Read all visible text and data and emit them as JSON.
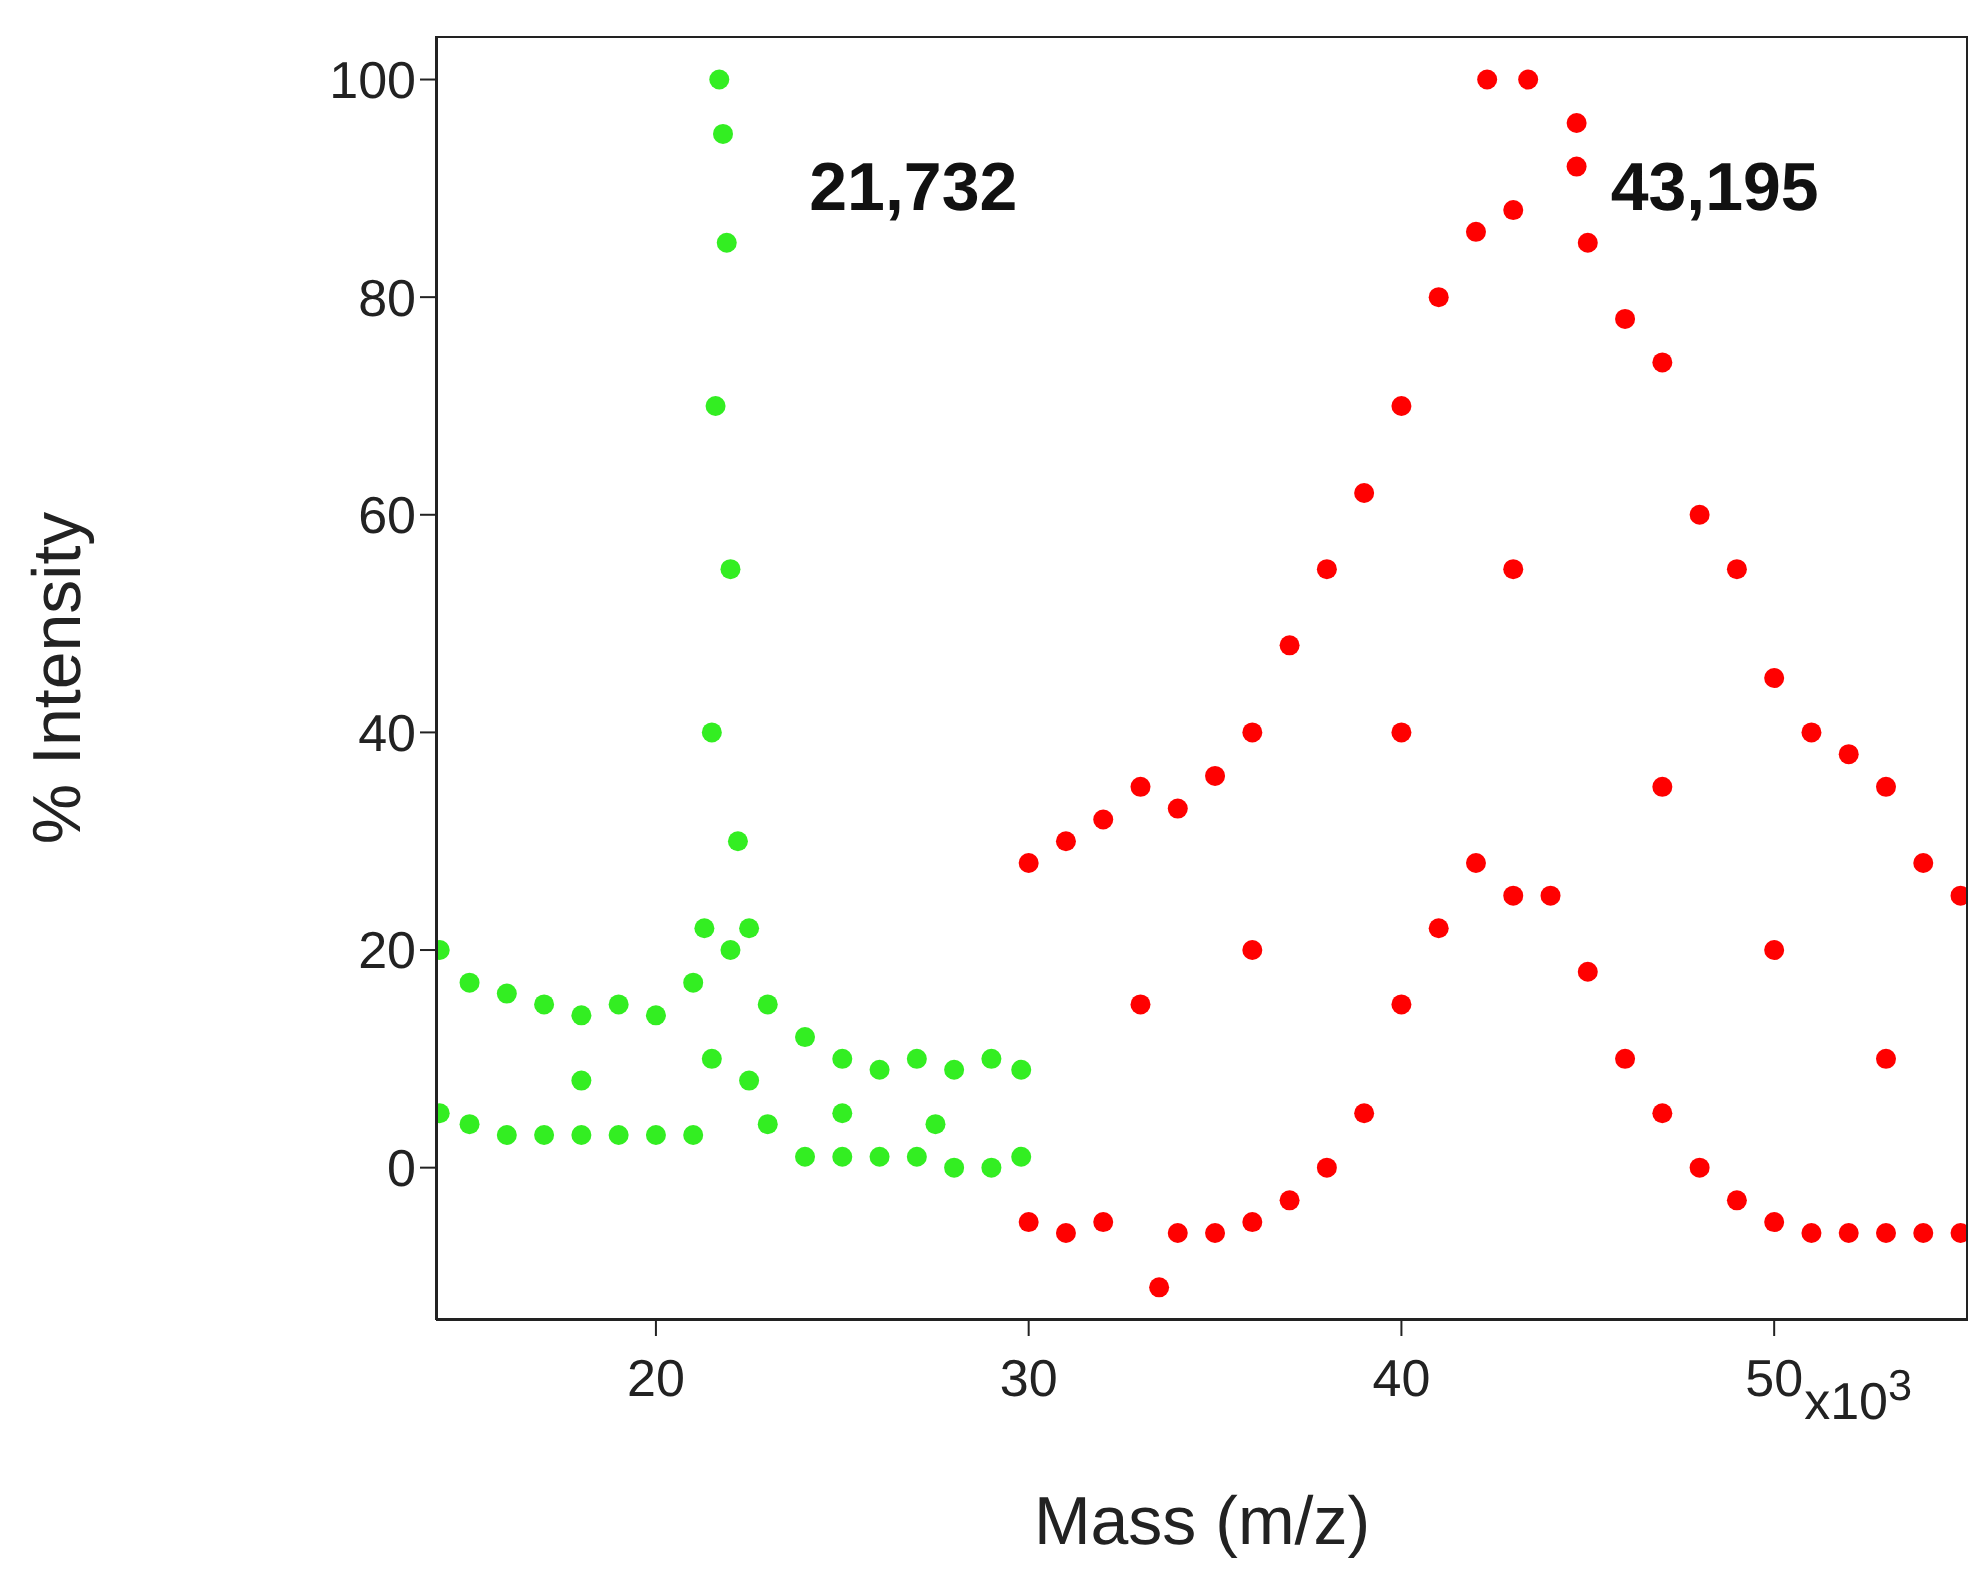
{
  "chart_data": {
    "type": "scatter",
    "xlabel": "Mass (m/z)",
    "ylabel": "% Intensity",
    "xlim": [
      14.1,
      55.2
    ],
    "ylim": [
      -14,
      104
    ],
    "xticks": [
      20,
      30,
      40,
      50
    ],
    "yticks": [
      0,
      20,
      40,
      60,
      80,
      100
    ],
    "grid": false,
    "marker": "circle",
    "annotations": [
      {
        "text": "21,732",
        "x": 21.7,
        "y": 100
      },
      {
        "text": "43,195",
        "x": 43.2,
        "y": 100
      },
      "x10$^{3}$"
    ],
    "series": [
      {
        "color": "#33ee22",
        "x": [
          14.2,
          14.2,
          15,
          15,
          16,
          16,
          17,
          17,
          18,
          18,
          19,
          19,
          20,
          20,
          21,
          21,
          21.3,
          21.5,
          21.5,
          21.6,
          21.7,
          21.8,
          21.9,
          22,
          22,
          22.2,
          22.5,
          22.5,
          23,
          23,
          24,
          24,
          25,
          25,
          26,
          26,
          27,
          27,
          28,
          28,
          29,
          29,
          29.8,
          29.8,
          18,
          25,
          27.5
        ],
        "values": [
          20,
          5,
          17,
          4,
          16,
          3,
          15,
          3,
          14,
          3,
          15,
          3,
          14,
          3,
          17,
          3,
          22,
          40,
          10,
          70,
          100,
          95,
          85,
          20,
          55,
          30,
          22,
          8,
          15,
          4,
          12,
          1,
          10,
          1,
          9,
          1,
          10,
          1,
          9,
          0,
          10,
          0,
          9,
          1,
          8,
          5,
          4
        ]
      },
      {
        "color": "#ff0000",
        "x": [
          30,
          30,
          31,
          31,
          32,
          32,
          33,
          33.5,
          34,
          34,
          35,
          35,
          36,
          36,
          37,
          37,
          38,
          38,
          39,
          39,
          40,
          40,
          41,
          41,
          42,
          42,
          42.3,
          43,
          43,
          43.4,
          44,
          44.7,
          44.7,
          45,
          45,
          46,
          46,
          47,
          47,
          48,
          48,
          49,
          49,
          50,
          50,
          51,
          51,
          52,
          52,
          53,
          53,
          54,
          54,
          55,
          55,
          33,
          36,
          40,
          43,
          47,
          50,
          53
        ],
        "values": [
          28,
          -5,
          30,
          -6,
          32,
          -5,
          35,
          -11,
          33,
          -6,
          36,
          -6,
          40,
          -5,
          48,
          -3,
          55,
          0,
          62,
          5,
          70,
          15,
          80,
          22,
          86,
          28,
          100,
          88,
          25,
          100,
          25,
          96,
          92,
          85,
          18,
          78,
          10,
          74,
          5,
          60,
          0,
          55,
          -3,
          45,
          -5,
          40,
          -6,
          38,
          -6,
          35,
          -6,
          28,
          -6,
          25,
          -6,
          15,
          20,
          40,
          55,
          35,
          20,
          10
        ]
      }
    ]
  }
}
